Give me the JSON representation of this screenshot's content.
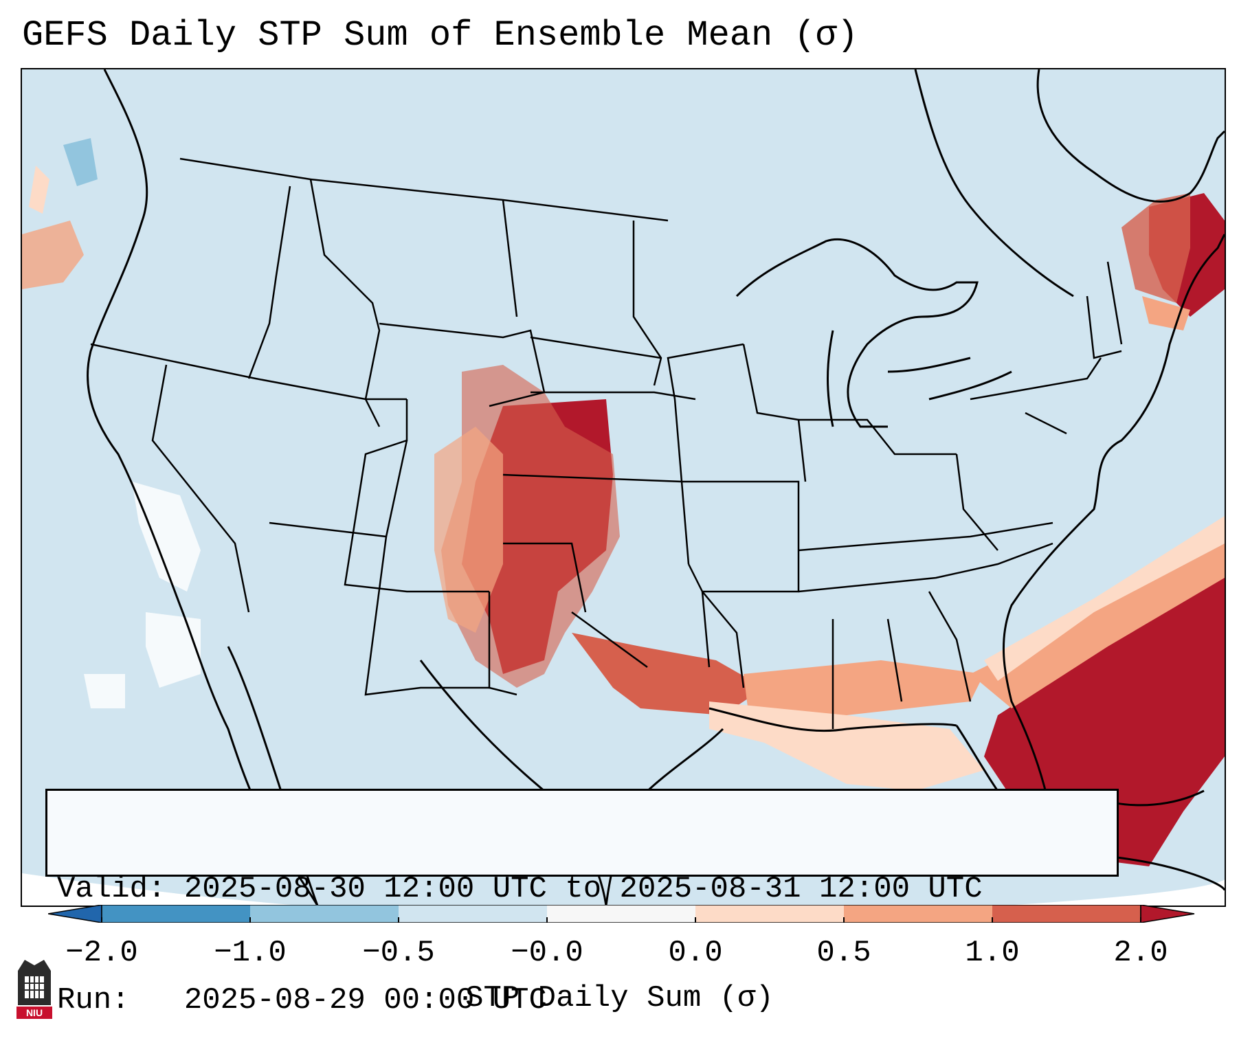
{
  "title": "GEFS Daily STP Sum of Ensemble Mean (σ)",
  "info": {
    "valid_line": "Valid: 2025-08-30 12:00 UTC to 2025-08-31 12:00 UTC",
    "run_line": "Run:   2025-08-29 00:00 UTC"
  },
  "colorbar": {
    "label": "STP Daily Sum (σ)",
    "ticks": [
      "−2.0",
      "−1.0",
      "−0.5",
      "−0.0",
      "0.0",
      "0.5",
      "1.0",
      "2.0"
    ],
    "colors": [
      "#4393c3",
      "#92c5de",
      "#d1e5f0",
      "#f7f7f7",
      "#fddbc7",
      "#f4a582",
      "#d6604d",
      "#b2182b"
    ],
    "under_color": "#2166ac",
    "over_color": "#b2182b"
  },
  "logo": {
    "text": "NIU"
  }
}
